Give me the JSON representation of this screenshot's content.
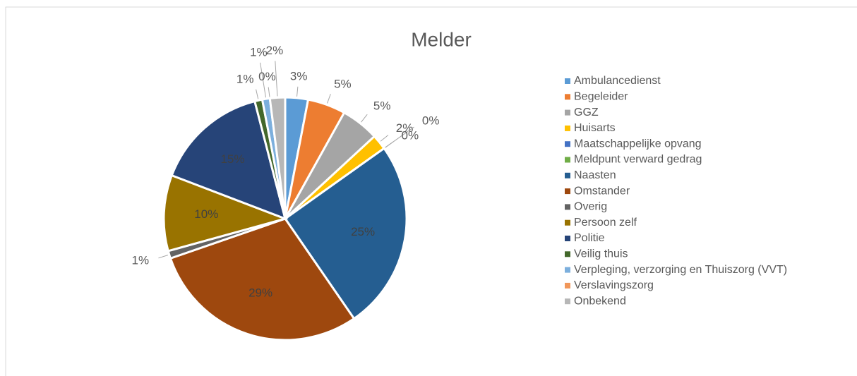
{
  "chart_data": {
    "type": "pie",
    "title": "Melder",
    "categories": [
      "Ambulancedienst",
      "Begeleider",
      "GGZ",
      "Huisarts",
      "Maatschappelijke opvang",
      "Meldpunt verward gedrag",
      "Naasten",
      "Omstander",
      "Overig",
      "Persoon zelf",
      "Politie",
      "Veilig thuis",
      "Verpleging, verzorging en Thuiszorg (VVT)",
      "Verslavingszorg",
      "Onbekend"
    ],
    "values": [
      3,
      5,
      5,
      2,
      0,
      0,
      25,
      29,
      1,
      10,
      15,
      1,
      1,
      0,
      2
    ],
    "value_labels": [
      "3%",
      "5%",
      "5%",
      "2%",
      "0%",
      "0%",
      "25%",
      "29%",
      "1%",
      "10%",
      "15%",
      "1%",
      "1%",
      "0%",
      "2%"
    ],
    "colors": [
      "#5b9bd5",
      "#ed7d31",
      "#a5a5a5",
      "#ffc000",
      "#4472c4",
      "#70ad47",
      "#255e91",
      "#9e480e",
      "#636363",
      "#997300",
      "#264478",
      "#43682b",
      "#7cafdd",
      "#f1975a",
      "#b7b7b7"
    ],
    "legend": "right"
  }
}
